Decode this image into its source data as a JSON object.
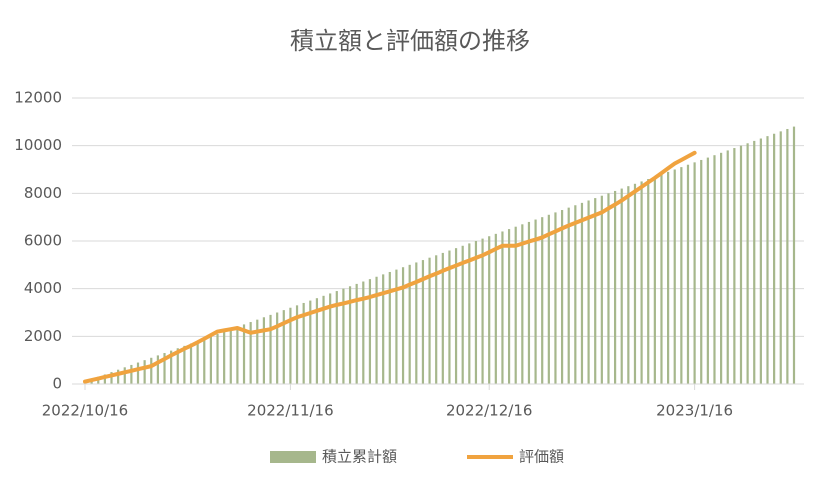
{
  "chart_data": {
    "type": "bar-line",
    "title": "積立額と評価額の推移",
    "x": [
      "2022/10/16",
      "2022/10/17",
      "2022/10/18",
      "2022/10/19",
      "2022/10/20",
      "2022/10/21",
      "2022/10/22",
      "2022/10/23",
      "2022/10/24",
      "2022/10/25",
      "2022/10/26",
      "2022/10/27",
      "2022/10/28",
      "2022/10/29",
      "2022/10/30",
      "2022/10/31",
      "2022/11/1",
      "2022/11/2",
      "2022/11/3",
      "2022/11/4",
      "2022/11/5",
      "2022/11/6",
      "2022/11/7",
      "2022/11/8",
      "2022/11/9",
      "2022/11/10",
      "2022/11/11",
      "2022/11/12",
      "2022/11/13",
      "2022/11/14",
      "2022/11/15",
      "2022/11/16",
      "2022/11/17",
      "2022/11/18",
      "2022/11/19",
      "2022/11/20",
      "2022/11/21",
      "2022/11/22",
      "2022/11/23",
      "2022/11/24",
      "2022/11/25",
      "2022/11/26",
      "2022/11/27",
      "2022/11/28",
      "2022/11/29",
      "2022/11/30",
      "2022/12/1",
      "2022/12/2",
      "2022/12/3",
      "2022/12/4",
      "2022/12/5",
      "2022/12/6",
      "2022/12/7",
      "2022/12/8",
      "2022/12/9",
      "2022/12/10",
      "2022/12/11",
      "2022/12/12",
      "2022/12/13",
      "2022/12/14",
      "2022/12/15",
      "2022/12/16",
      "2022/12/17",
      "2022/12/18",
      "2022/12/19",
      "2022/12/20",
      "2022/12/21",
      "2022/12/22",
      "2022/12/23",
      "2022/12/24",
      "2022/12/25",
      "2022/12/26",
      "2022/12/27",
      "2022/12/28",
      "2022/12/29",
      "2022/12/30",
      "2022/12/31",
      "2023/1/1",
      "2023/1/2",
      "2023/1/3",
      "2023/1/4",
      "2023/1/5",
      "2023/1/6",
      "2023/1/7",
      "2023/1/8",
      "2023/1/9",
      "2023/1/10",
      "2023/1/11",
      "2023/1/12",
      "2023/1/13",
      "2023/1/14",
      "2023/1/15",
      "2023/1/16",
      "2023/1/17",
      "2023/1/18",
      "2023/1/19",
      "2023/1/20",
      "2023/1/21",
      "2023/1/22",
      "2023/1/23",
      "2023/1/24",
      "2023/1/25",
      "2023/1/26",
      "2023/1/27",
      "2023/1/28",
      "2023/1/29",
      "2023/1/30",
      "2023/1/31"
    ],
    "series": [
      {
        "name": "積立累計額",
        "type": "bar",
        "color": "#a6b78c",
        "values": [
          100,
          200,
          300,
          400,
          500,
          600,
          700,
          800,
          900,
          1000,
          1100,
          1200,
          1300,
          1400,
          1500,
          1600,
          1700,
          1800,
          1900,
          2000,
          2100,
          2200,
          2300,
          2400,
          2500,
          2600,
          2700,
          2800,
          2900,
          3000,
          3100,
          3200,
          3300,
          3400,
          3500,
          3600,
          3700,
          3800,
          3900,
          4000,
          4100,
          4200,
          4300,
          4400,
          4500,
          4600,
          4700,
          4800,
          4900,
          5000,
          5100,
          5200,
          5300,
          5400,
          5500,
          5600,
          5700,
          5800,
          5900,
          6000,
          6100,
          6200,
          6300,
          6400,
          6500,
          6600,
          6700,
          6800,
          6900,
          7000,
          7100,
          7200,
          7300,
          7400,
          7500,
          7600,
          7700,
          7800,
          7900,
          8000,
          8100,
          8200,
          8300,
          8400,
          8500,
          8600,
          8700,
          8800,
          8900,
          9000,
          9100,
          9200,
          9300,
          9400,
          9500,
          9600,
          9700,
          9800,
          9900,
          10000,
          10100,
          10200,
          10300,
          10400,
          10500,
          10600,
          10700,
          10800
        ]
      },
      {
        "name": "評価額",
        "type": "line",
        "color": "#f0a33f",
        "values": [
          100,
          165,
          230,
          295,
          360,
          425,
          490,
          555,
          620,
          685,
          750,
          900,
          1050,
          1200,
          1340,
          1480,
          1610,
          1750,
          1900,
          2050,
          2200,
          2250,
          2300,
          2350,
          2250,
          2150,
          2200,
          2250,
          2300,
          2420,
          2550,
          2680,
          2800,
          2890,
          2980,
          3070,
          3160,
          3250,
          3320,
          3380,
          3450,
          3520,
          3580,
          3650,
          3730,
          3810,
          3890,
          3970,
          4050,
          4170,
          4280,
          4400,
          4520,
          4630,
          4750,
          4860,
          4970,
          5080,
          5180,
          5290,
          5400,
          5530,
          5670,
          5800,
          5800,
          5800,
          5890,
          5980,
          6060,
          6150,
          6280,
          6400,
          6530,
          6650,
          6760,
          6870,
          6980,
          7090,
          7200,
          7370,
          7530,
          7700,
          7890,
          8080,
          8270,
          8460,
          8650,
          8850,
          9050,
          9250,
          9400,
          9550,
          9700,
          null,
          null,
          null,
          null,
          null,
          null,
          null,
          null,
          null,
          null,
          null,
          null,
          null,
          null,
          null
        ]
      }
    ],
    "xticks": [
      "2022/10/16",
      "2022/11/16",
      "2022/12/16",
      "2023/1/16"
    ],
    "ylim": [
      0,
      12000
    ],
    "yticks": [
      0,
      2000,
      4000,
      6000,
      8000,
      10000,
      12000
    ],
    "grid": true,
    "legend": "bottom"
  }
}
